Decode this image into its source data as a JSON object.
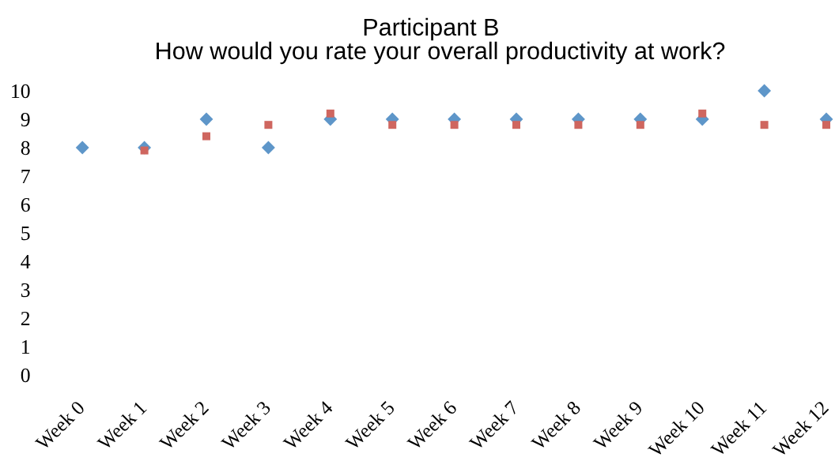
{
  "chart_data": {
    "type": "scatter",
    "title": "Participant B",
    "subtitle": "How would you rate your overall productivity at work?",
    "categories": [
      "Week 0",
      "Week 1",
      "Week 2",
      "Week 3",
      "Week 4",
      "Week 5",
      "Week 6",
      "Week 7",
      "Week 8",
      "Week 9",
      "Week 10",
      "Week 11",
      "Week 12"
    ],
    "series": [
      {
        "color": "#5e96c9",
        "marker": "diamond",
        "values": [
          8,
          8,
          9,
          8,
          9,
          9,
          9,
          9,
          9,
          9,
          9,
          10,
          9
        ]
      },
      {
        "color": "#cf665f",
        "marker": "square",
        "values": [
          null,
          7.9,
          8.4,
          8.8,
          9.2,
          8.8,
          8.8,
          8.8,
          8.8,
          8.8,
          9.2,
          8.8,
          8.8
        ]
      }
    ],
    "ylim": [
      0,
      10
    ],
    "yticks": [
      0,
      1,
      2,
      3,
      4,
      5,
      6,
      7,
      8,
      9,
      10
    ]
  }
}
